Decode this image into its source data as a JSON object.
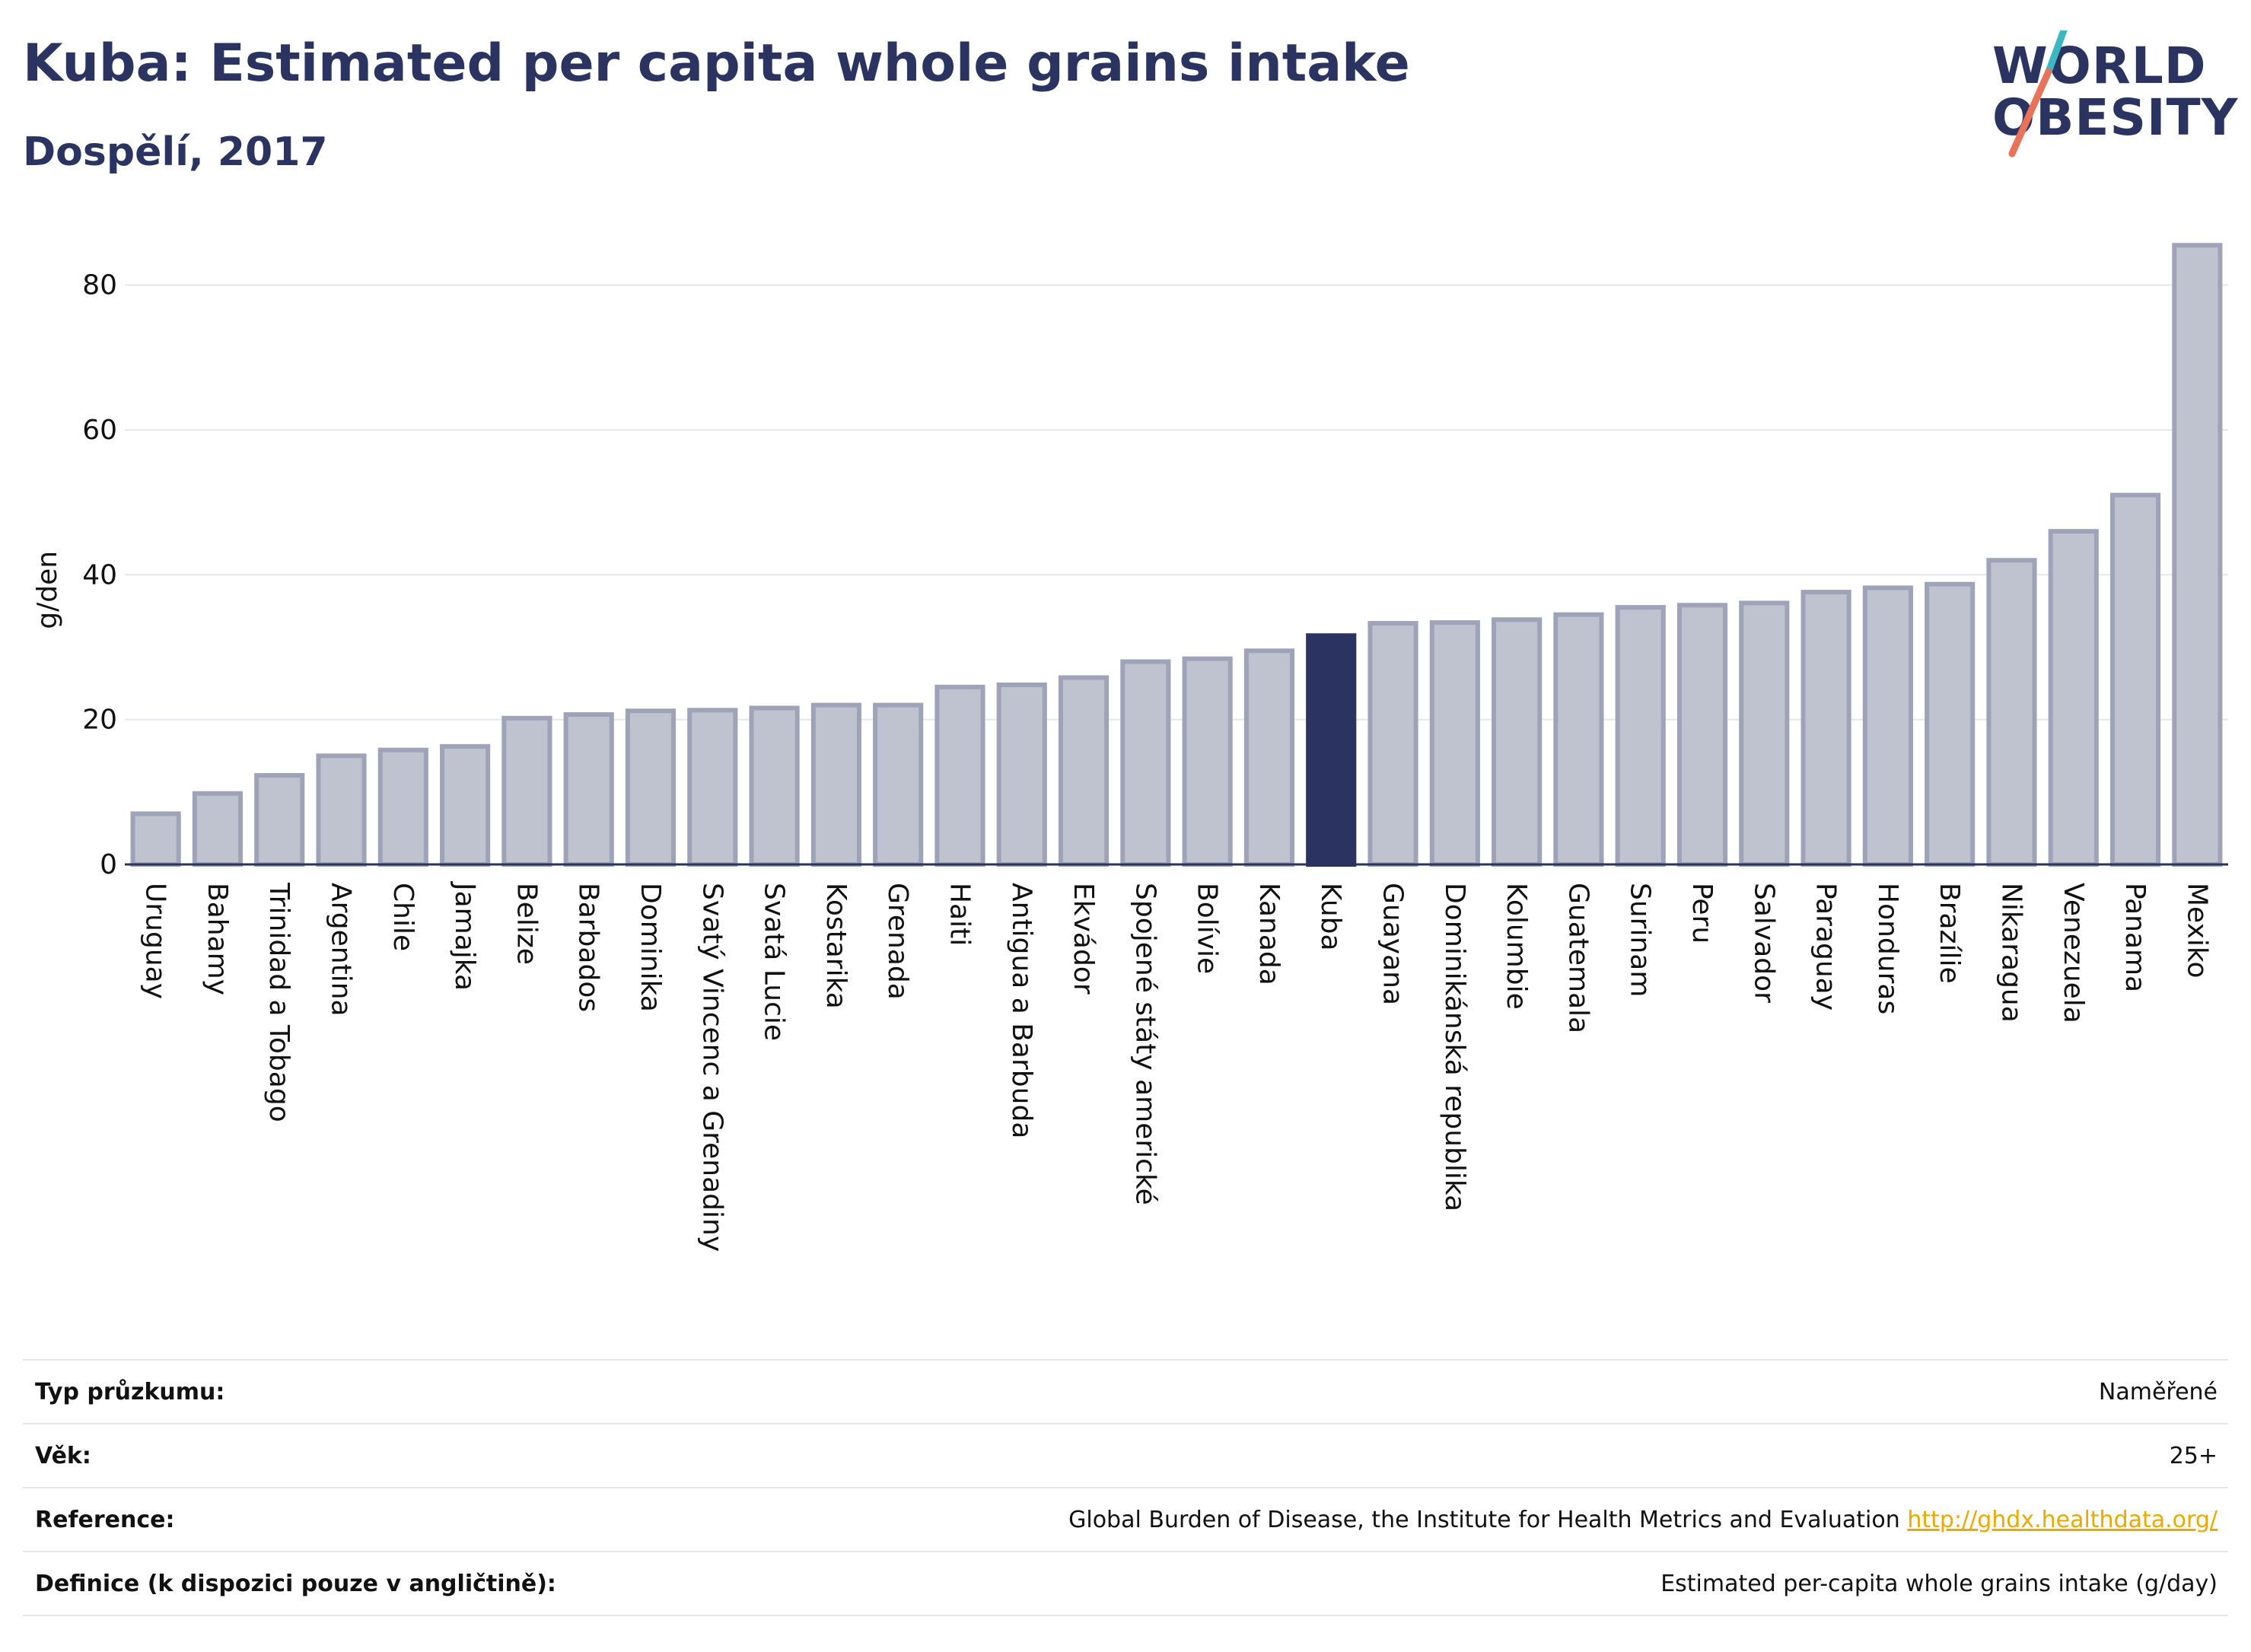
{
  "header": {
    "title": "Kuba: Estimated per capita whole grains intake",
    "subtitle": "Dospělí, 2017"
  },
  "logo": {
    "line1": "WORLD",
    "line2": "OBESITY",
    "stripe_colors": [
      "#3bb8c3",
      "#e8735a"
    ]
  },
  "colors": {
    "highlight": "#2b3460",
    "bar_fill": "#bfc2cf",
    "bar_stroke": "#9ea3b8",
    "grid": "#e6e8ee",
    "axis": "#2b3460"
  },
  "chart_data": {
    "type": "bar",
    "ylabel": "g/den",
    "ylim": [
      0,
      87
    ],
    "yticks": [
      0,
      20,
      40,
      60,
      80
    ],
    "grid": true,
    "highlight": "Kuba",
    "categories": [
      "Uruguay",
      "Bahamy",
      "Trinidad a Tobago",
      "Argentina",
      "Chile",
      "Jamajka",
      "Belize",
      "Barbados",
      "Dominika",
      "Svatý Vincenc a Grenadiny",
      "Svatá Lucie",
      "Kostarika",
      "Grenada",
      "Haiti",
      "Antigua a Barbuda",
      "Ekvádor",
      "Spojené státy americké",
      "Bolívie",
      "Kanada",
      "Kuba",
      "Guayana",
      "Dominikánská republika",
      "Kolumbie",
      "Guatemala",
      "Surinam",
      "Peru",
      "Salvador",
      "Paraguay",
      "Honduras",
      "Brazílie",
      "Nikaragua",
      "Venezuela",
      "Panama",
      "Mexiko"
    ],
    "values": [
      7.0,
      9.8,
      12.3,
      15.0,
      15.8,
      16.3,
      20.2,
      20.7,
      21.2,
      21.3,
      21.6,
      22.0,
      22.0,
      24.5,
      24.8,
      25.8,
      28.0,
      28.4,
      29.5,
      31.6,
      33.3,
      33.4,
      33.8,
      34.5,
      35.5,
      35.8,
      36.1,
      37.6,
      38.2,
      38.7,
      42.0,
      46.0,
      51.0,
      85.5
    ]
  },
  "meta": {
    "rows": [
      {
        "key": "Typ průzkumu:",
        "value": "Naměřené"
      },
      {
        "key": "Věk:",
        "value": "25+"
      },
      {
        "key": "Reference:",
        "value": "Global Burden of Disease, the Institute for Health Metrics and Evaluation",
        "link": "http://ghdx.healthdata.org/"
      },
      {
        "key": "Definice (k dispozici pouze v angličtině):",
        "value": "Estimated per-capita whole grains intake (g/day)"
      }
    ]
  }
}
